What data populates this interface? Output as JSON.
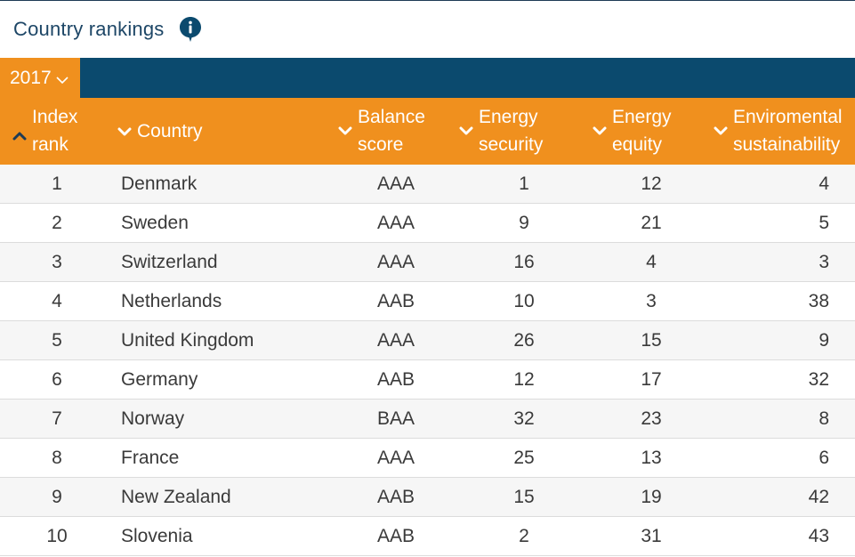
{
  "header": {
    "title": "Country rankings",
    "info_icon": "info-icon"
  },
  "year_selector": {
    "value": "2017",
    "icon": "chevron-down-icon"
  },
  "colors": {
    "accent_orange": "#f0901e",
    "navy": "#0b4a6e",
    "title_text": "#1d4666"
  },
  "columns": [
    {
      "key": "rank",
      "line1": "Index",
      "line2": "rank",
      "sort": "ascending"
    },
    {
      "key": "country",
      "line1": "Country",
      "line2": "",
      "sort": "descending"
    },
    {
      "key": "balance",
      "line1": "Balance",
      "line2": "score",
      "sort": "descending"
    },
    {
      "key": "security",
      "line1": "Energy",
      "line2": "security",
      "sort": "descending"
    },
    {
      "key": "equity",
      "line1": "Energy",
      "line2": "equity",
      "sort": "descending"
    },
    {
      "key": "env",
      "line1": "Enviromental",
      "line2": "sustainability",
      "sort": "descending"
    }
  ],
  "rows": [
    {
      "rank": "1",
      "country": "Denmark",
      "balance": "AAA",
      "security": "1",
      "equity": "12",
      "env": "4"
    },
    {
      "rank": "2",
      "country": "Sweden",
      "balance": "AAA",
      "security": "9",
      "equity": "21",
      "env": "5"
    },
    {
      "rank": "3",
      "country": "Switzerland",
      "balance": "AAA",
      "security": "16",
      "equity": "4",
      "env": "3"
    },
    {
      "rank": "4",
      "country": "Netherlands",
      "balance": "AAB",
      "security": "10",
      "equity": "3",
      "env": "38"
    },
    {
      "rank": "5",
      "country": "United Kingdom",
      "balance": "AAA",
      "security": "26",
      "equity": "15",
      "env": "9"
    },
    {
      "rank": "6",
      "country": "Germany",
      "balance": "AAB",
      "security": "12",
      "equity": "17",
      "env": "32"
    },
    {
      "rank": "7",
      "country": "Norway",
      "balance": "BAA",
      "security": "32",
      "equity": "23",
      "env": "8"
    },
    {
      "rank": "8",
      "country": "France",
      "balance": "AAA",
      "security": "25",
      "equity": "13",
      "env": "6"
    },
    {
      "rank": "9",
      "country": "New Zealand",
      "balance": "AAB",
      "security": "15",
      "equity": "19",
      "env": "42"
    },
    {
      "rank": "10",
      "country": "Slovenia",
      "balance": "AAB",
      "security": "2",
      "equity": "31",
      "env": "43"
    }
  ]
}
